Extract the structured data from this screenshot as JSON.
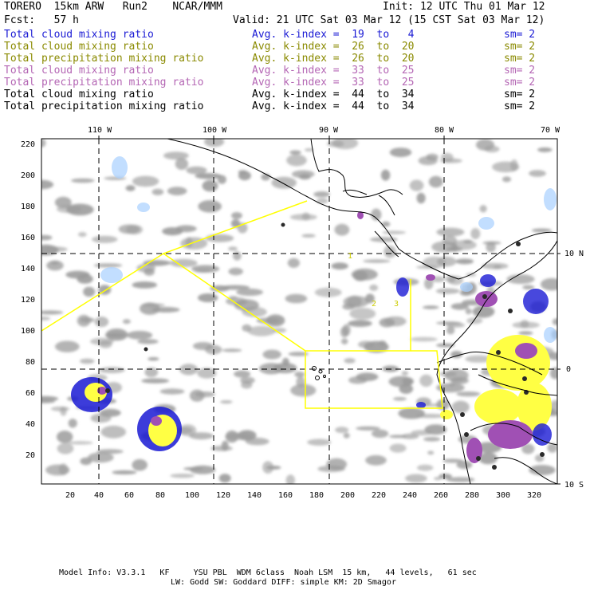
{
  "header": {
    "model": "TORERO  15km ARW   Run2    NCAR/MMM",
    "forecast": "Fcst:   57 h",
    "init": "Init: 12 UTC Thu 01 Mar 12",
    "valid": "Valid: 21 UTC Sat 03 Mar 12 (15 CST Sat 03 Mar 12)"
  },
  "legend": [
    {
      "field": "Total cloud mixing ratio",
      "index": "Avg. k-index =  19  to   4",
      "sm": "sm= 2",
      "color": "#1a1ad4"
    },
    {
      "field": "Total cloud mixing ratio",
      "index": "Avg. k-index =  26  to  20",
      "sm": "sm= 2",
      "color": "#8a8a00"
    },
    {
      "field": "Total precipitation mixing ratio",
      "index": "Avg. k-index =  26  to  20",
      "sm": "sm= 2",
      "color": "#8a8a00"
    },
    {
      "field": "Total cloud mixing ratio",
      "index": "Avg. k-index =  33  to  25",
      "sm": "sm= 2",
      "color": "#b466b4"
    },
    {
      "field": "Total precipitation mixing ratio",
      "index": "Avg. k-index =  33  to  25",
      "sm": "sm= 2",
      "color": "#b466b4"
    },
    {
      "field": "Total cloud mixing ratio",
      "index": "Avg. k-index =  44  to  34",
      "sm": "sm= 2",
      "color": "#000000"
    },
    {
      "field": "Total precipitation mixing ratio",
      "index": "Avg. k-index =  44  to  34",
      "sm": "sm= 2",
      "color": "#000000"
    }
  ],
  "map": {
    "lon_labels": [
      "110 W",
      "100 W",
      "90 W",
      "80 W",
      "70 W"
    ],
    "lat_labels": [
      "10 N",
      "0",
      "10 S"
    ],
    "x_ticks": [
      "20",
      "40",
      "60",
      "80",
      "100",
      "120",
      "140",
      "160",
      "180",
      "200",
      "220",
      "240",
      "260",
      "280",
      "300",
      "320"
    ],
    "y_ticks": [
      "220",
      "200",
      "180",
      "160",
      "140",
      "120",
      "100",
      "80",
      "60",
      "40",
      "20"
    ],
    "box_label_1": "1",
    "box_label_2": "2",
    "box_label_3": "3",
    "colors": {
      "cloud_gray": "#9a9a9a",
      "yellow": "#ffff44",
      "blue": "#1a1ad4",
      "light_blue": "#a8d0ff",
      "purple": "#a050b4",
      "black": "#1a1a1a",
      "outline": "#ffff00"
    }
  },
  "footer": {
    "line1": "Model Info: V3.3.1   KF     YSU PBL  WDM 6class  Noah LSM  15 km,   44 levels,   61 sec",
    "line2": "LW: Godd SW: Goddard DIFF: simple KM: 2D Smagor"
  }
}
